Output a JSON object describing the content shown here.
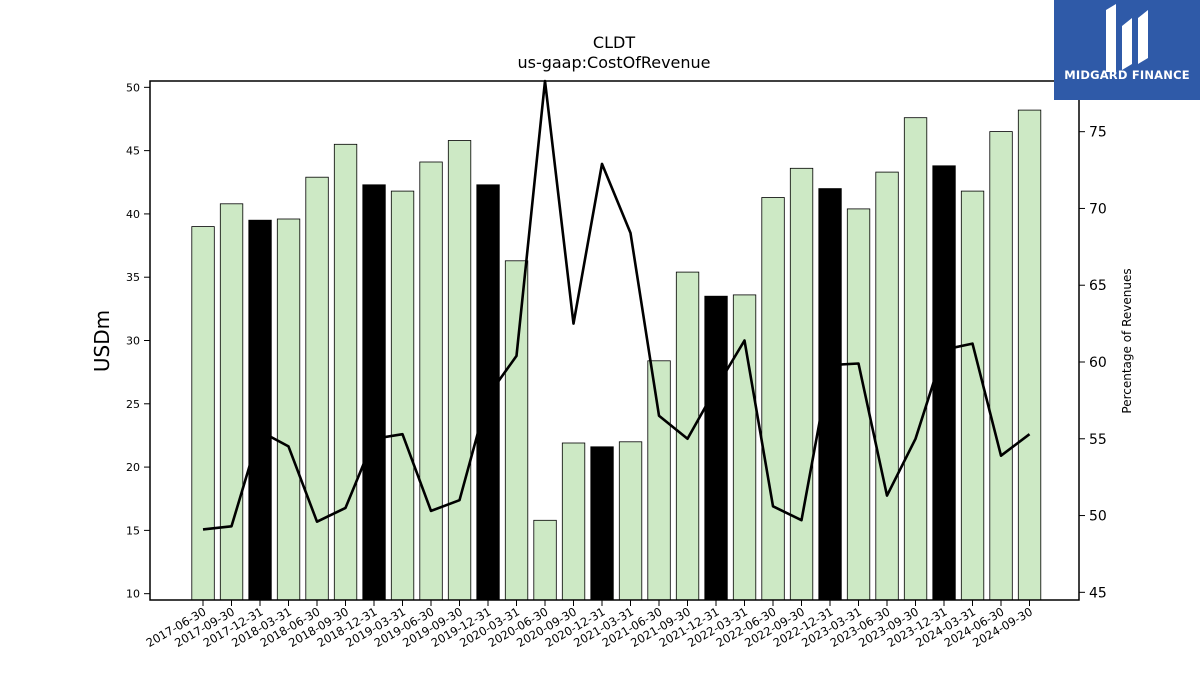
{
  "brand": {
    "logo_text": "MIDGARD FINANCE",
    "background_color": "#2f5aa8"
  },
  "chart_data": {
    "type": "bar",
    "title": "CLDT",
    "subtitle": "us-gaap:CostOfRevenue",
    "ylabel": "USDm",
    "y2label": "Percentage of Revenues",
    "ylim": [
      9.5,
      50.5
    ],
    "y2lim": [
      44.5,
      78.3
    ],
    "yticks": [
      10,
      15,
      20,
      25,
      30,
      35,
      40,
      45,
      50
    ],
    "y2ticks": [
      45,
      50,
      55,
      60,
      65,
      70,
      75
    ],
    "categories": [
      "2017-06-30",
      "2017-09-30",
      "2017-12-31",
      "2018-03-31",
      "2018-06-30",
      "2018-09-30",
      "2018-12-31",
      "2019-03-31",
      "2019-06-30",
      "2019-09-30",
      "2019-12-31",
      "2020-03-31",
      "2020-06-30",
      "2020-09-30",
      "2020-12-31",
      "2021-03-31",
      "2021-06-30",
      "2021-09-30",
      "2021-12-31",
      "2022-03-31",
      "2022-06-30",
      "2022-09-30",
      "2022-12-31",
      "2023-03-31",
      "2023-06-30",
      "2023-09-30",
      "2023-12-31",
      "2024-03-31",
      "2024-06-30",
      "2024-09-30"
    ],
    "series": [
      {
        "name": "",
        "kind": "bar",
        "axis": "left",
        "values": [
          39.0,
          40.8,
          39.5,
          39.6,
          42.9,
          45.5,
          42.3,
          41.8,
          44.1,
          45.8,
          42.3,
          36.3,
          15.8,
          21.9,
          21.6,
          22.0,
          28.4,
          35.4,
          33.5,
          33.6,
          41.3,
          43.6,
          42.0,
          40.4,
          43.3,
          47.6,
          43.8,
          41.8,
          46.5,
          48.2
        ],
        "highlight": [
          false,
          false,
          true,
          false,
          false,
          false,
          true,
          false,
          false,
          false,
          true,
          false,
          false,
          false,
          true,
          false,
          false,
          false,
          true,
          false,
          false,
          false,
          true,
          false,
          false,
          false,
          true,
          false,
          false,
          false
        ]
      },
      {
        "name": "",
        "kind": "line",
        "axis": "right",
        "values": [
          49.1,
          49.3,
          55.5,
          54.5,
          49.6,
          50.5,
          55.0,
          55.3,
          50.3,
          51.0,
          57.8,
          60.4,
          78.3,
          62.5,
          72.9,
          68.4,
          56.5,
          55.0,
          58.3,
          61.4,
          50.6,
          49.7,
          59.8,
          59.9,
          51.3,
          55.0,
          60.8,
          61.2,
          53.9,
          55.3
        ]
      }
    ],
    "colors": {
      "bar": "#cde9c5",
      "bar_highlight": "#000000",
      "bar_edge": "#000000",
      "line": "#000000"
    },
    "grid": false,
    "legend": "none"
  }
}
